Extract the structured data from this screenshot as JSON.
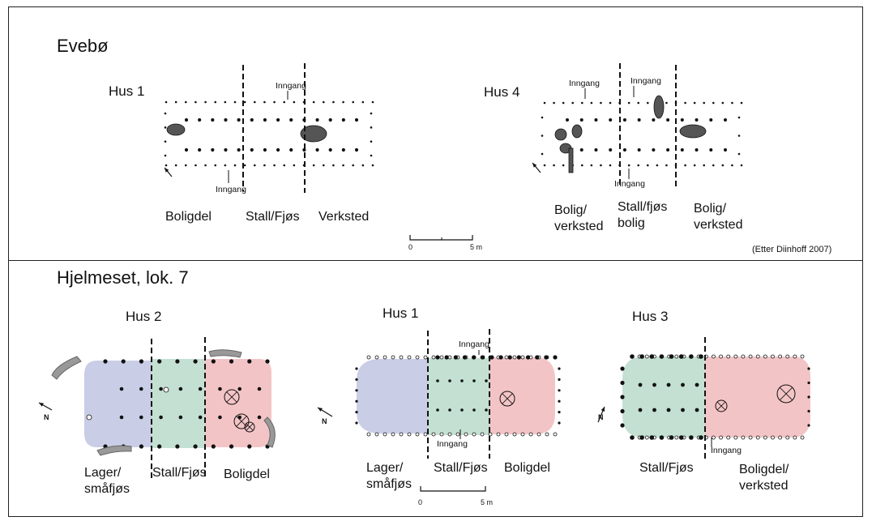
{
  "top": {
    "site": "Evebø",
    "house_left": {
      "title": "Hus 1",
      "entry_top": "Inngang",
      "entry_bottom": "Inngang",
      "zones": [
        "Boligdel",
        "Stall/Fjøs",
        "Verksted"
      ]
    },
    "house_right": {
      "title": "Hus 4",
      "entry_1": "Inngang",
      "entry_2": "Inngang",
      "entry_bottom": "Inngang",
      "zones": [
        "Bolig/\nverksted",
        "Stall/fjøs\nbolig",
        "Bolig/\nverksted"
      ]
    },
    "scale": {
      "start": "0",
      "end": "5 m"
    },
    "citation": "(Etter Diinhoff 2007)"
  },
  "bottom": {
    "site": "Hjelmeset, lok. 7",
    "house_left": {
      "title": "Hus 2",
      "north": "N",
      "zones": [
        "Lager/\nsmåfjøs",
        "Stall/Fjøs",
        "Boligdel"
      ]
    },
    "house_mid": {
      "title": "Hus 1",
      "north": "N",
      "entry_top": "Inngang",
      "entry_bottom": "Inngang",
      "zones": [
        "Lager/\nsmåfjøs",
        "Stall/Fjøs",
        "Boligdel"
      ]
    },
    "house_right": {
      "title": "Hus 3",
      "north": "N",
      "entry_bottom": "Inngang",
      "zones": [
        "Stall/Fjøs",
        "Boligdel/\nverksted"
      ]
    },
    "scale": {
      "start": "0",
      "end": "5 m"
    }
  },
  "colors": {
    "storage": "#c9cde6",
    "stable": "#c3e0d2",
    "dwelling": "#f3c4c6",
    "feature": "#555555",
    "stone": "#999999"
  }
}
